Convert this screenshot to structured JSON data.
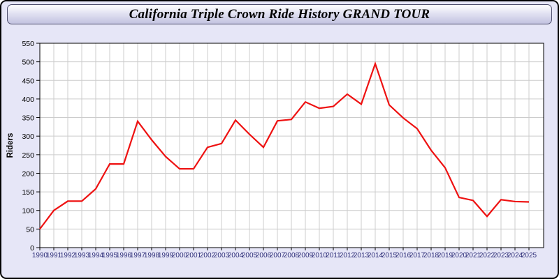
{
  "title_bar": {
    "title": "California Triple Crown Ride History GRAND TOUR"
  },
  "colors": {
    "page_background": "#e6e6f7",
    "window_border": "#000000",
    "titlebar_gradient_top": "#ffffff",
    "titlebar_gradient_bottom": "#c2c2e0",
    "plot_background": "#ffffff",
    "line": "#ee1111"
  },
  "chart_data": {
    "type": "line",
    "title": "California Triple Crown Ride History GRAND TOUR",
    "xlabel": "",
    "ylabel": "Riders",
    "x": [
      1990,
      1991,
      1992,
      1993,
      1994,
      1995,
      1996,
      1997,
      1998,
      1999,
      2000,
      2001,
      2002,
      2003,
      2004,
      2005,
      2006,
      2007,
      2008,
      2009,
      2010,
      2011,
      2012,
      2013,
      2014,
      2015,
      2016,
      2017,
      2018,
      2019,
      2020,
      2021,
      2022,
      2023,
      2024,
      2025
    ],
    "series": [
      {
        "name": "Riders",
        "color": "#ee1111",
        "values": [
          50,
          100,
          125,
          125,
          158,
          225,
          225,
          340,
          290,
          245,
          212,
          212,
          270,
          280,
          343,
          305,
          270,
          341,
          345,
          392,
          375,
          380,
          413,
          386,
          495,
          384,
          349,
          320,
          262,
          215,
          135,
          127,
          84,
          129,
          124,
          123
        ]
      }
    ],
    "ylim": [
      0,
      550
    ],
    "ytick_step": 50,
    "grid": true,
    "legend": "none",
    "grid_color": "#cccccc",
    "frame_color": "#000000",
    "xtick_color": "#2e2e78",
    "ytick_color": "#000000"
  }
}
